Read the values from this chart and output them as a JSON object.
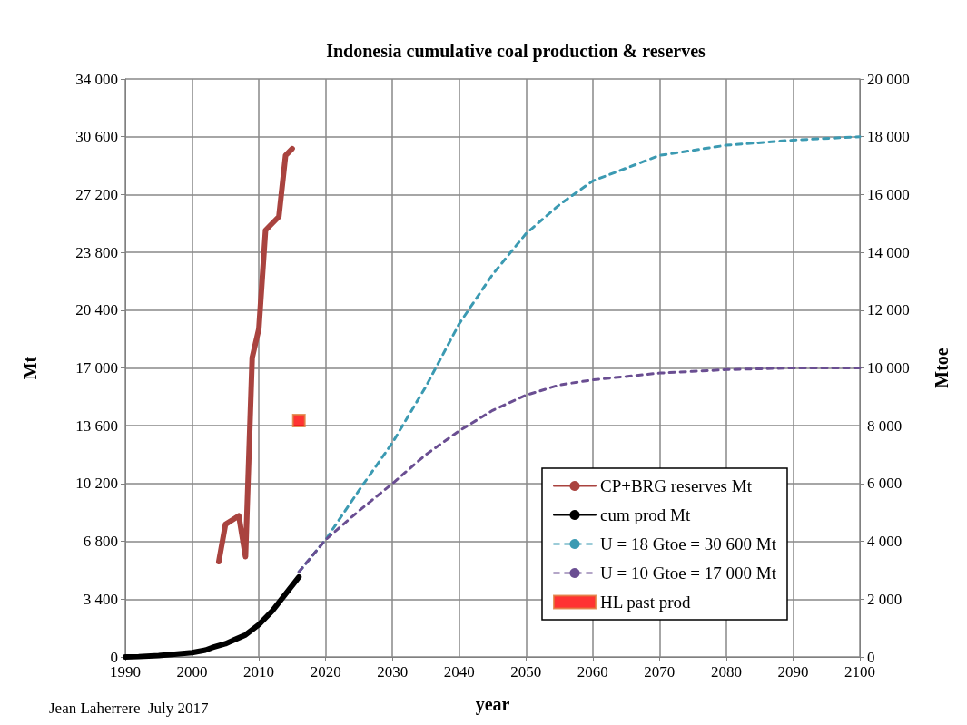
{
  "chart_data": {
    "type": "line",
    "title": "Indonesia cumulative coal production & reserves",
    "xlabel": "year",
    "ylabel": "Mt",
    "y2label": "Mtoe",
    "annotations": [
      "Jean Laherrere  July 2017"
    ],
    "xlim": [
      1990,
      2100
    ],
    "xticks": [
      1990,
      2000,
      2010,
      2020,
      2030,
      2040,
      2050,
      2060,
      2070,
      2080,
      2090,
      2100
    ],
    "ylim": [
      0,
      34000
    ],
    "yticks": [
      0,
      {
        "value": 3400,
        "label": "3 400"
      },
      {
        "value": 6800,
        "label": "6 800"
      },
      {
        "value": 10200,
        "label": "10 200"
      },
      {
        "value": 13600,
        "label": "13 600"
      },
      {
        "value": 17000,
        "label": "17 000"
      },
      {
        "value": 20400,
        "label": "20 400"
      },
      {
        "value": 23800,
        "label": "23 800"
      },
      {
        "value": 27200,
        "label": "27 200"
      },
      {
        "value": 30600,
        "label": "30 600"
      },
      {
        "value": 34000,
        "label": "34 000"
      }
    ],
    "y2lim": [
      0,
      20000
    ],
    "y2ticks": [
      0,
      {
        "value": 2000,
        "label": "2 000"
      },
      {
        "value": 4000,
        "label": "4 000"
      },
      {
        "value": 6000,
        "label": "6 000"
      },
      {
        "value": 8000,
        "label": "8 000"
      },
      {
        "value": 10000,
        "label": "10 000"
      },
      {
        "value": 12000,
        "label": "12 000"
      },
      {
        "value": 14000,
        "label": "14 000"
      },
      {
        "value": 16000,
        "label": "16 000"
      },
      {
        "value": 18000,
        "label": "18 000"
      },
      {
        "value": 20000,
        "label": "20 000"
      }
    ],
    "grid": true,
    "legend": "bottom right",
    "series": [
      {
        "name": "CP+BRG reserves Mt",
        "color": "#a9433f",
        "line_style": "solid",
        "x": [
          2004,
          2005,
          2007,
          2008,
          2009,
          2010,
          2011,
          2013,
          2014,
          2015
        ],
        "values": [
          5600,
          7800,
          8300,
          5900,
          17600,
          19300,
          25100,
          25900,
          29500,
          29900
        ]
      },
      {
        "name": "cum prod Mt",
        "color": "#000000",
        "line_style": "solid",
        "x": [
          1990,
          1992,
          1995,
          1997,
          2000,
          2002,
          2003,
          2005,
          2008,
          2010,
          2012,
          2014,
          2016
        ],
        "values": [
          0,
          20,
          80,
          150,
          250,
          400,
          550,
          780,
          1300,
          1900,
          2700,
          3700,
          4700
        ]
      },
      {
        "name": "U = 18 Gtoe = 30 600 Mt",
        "color": "#3b9ab2",
        "line_style": "dashed",
        "x": [
          2016,
          2020,
          2025,
          2030,
          2035,
          2040,
          2045,
          2050,
          2055,
          2060,
          2070,
          2080,
          2090,
          2100
        ],
        "values": [
          5000,
          6900,
          9800,
          12600,
          15900,
          19600,
          22500,
          24900,
          26600,
          28000,
          29500,
          30100,
          30400,
          30600
        ]
      },
      {
        "name": "U = 10 Gtoe = 17 000 Mt",
        "color": "#6a4e92",
        "line_style": "dashed",
        "x": [
          2016,
          2020,
          2025,
          2030,
          2035,
          2040,
          2045,
          2050,
          2055,
          2060,
          2070,
          2080,
          2090,
          2100
        ],
        "values": [
          5000,
          6900,
          8600,
          10200,
          11900,
          13300,
          14500,
          15400,
          16000,
          16300,
          16700,
          16900,
          17000,
          17000
        ]
      },
      {
        "name": "HL past prod",
        "type": "scatter",
        "marker": "square",
        "color": "#ff0000",
        "x": [
          2016
        ],
        "values": [
          13900
        ]
      }
    ]
  }
}
